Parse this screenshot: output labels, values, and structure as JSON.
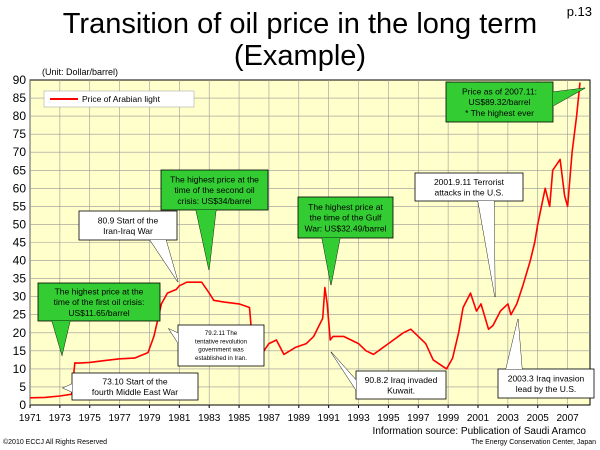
{
  "page_number": "p.13",
  "title_line1": "Transition of oil price in the long term",
  "title_line2": "(Example)",
  "unit_label": "(Unit: Dollar/barrel)",
  "source": "Information source: Publication of Saudi Aramco",
  "copyright": "©2010 ECCJ All Rights Reserved",
  "organization": "The Energy Conservation Center, Japan",
  "colors": {
    "plot_bg": "#ffffcc",
    "line": "#ff0000",
    "callout_green": "#33cc33",
    "callout_white": "#ffffff",
    "grid": "#999999"
  },
  "chart_data": {
    "type": "line",
    "title": "Transition of oil price in the long term",
    "ylabel": "(Unit: Dollar/barrel)",
    "xlabel": "",
    "ylim": [
      0,
      90
    ],
    "xlim": [
      1971,
      2008.5
    ],
    "grid": true,
    "legend_position": "top-left",
    "y_ticks": [
      "0",
      "5",
      "10",
      "15",
      "20",
      "25",
      "30",
      "35",
      "40",
      "45",
      "50",
      "55",
      "60",
      "65",
      "70",
      "75",
      "80",
      "85",
      "90"
    ],
    "x_ticks": [
      "1971",
      "1973",
      "1975",
      "1977",
      "1979",
      "1981",
      "1983",
      "1985",
      "1987",
      "1989",
      "1991",
      "1993",
      "1995",
      "1997",
      "1999",
      "2001",
      "2003",
      "2005",
      "2007"
    ],
    "series": [
      {
        "name": "Price of Arabian light",
        "x": [
          1971.0,
          1972.0,
          1973.0,
          1973.8,
          1974.0,
          1974.3,
          1975.0,
          1976.0,
          1977.0,
          1978.0,
          1978.9,
          1979.3,
          1979.8,
          1980.2,
          1980.8,
          1981.0,
          1981.5,
          1982.0,
          1982.5,
          1983.0,
          1983.3,
          1984.0,
          1985.0,
          1985.7,
          1986.0,
          1986.5,
          1987.0,
          1987.5,
          1988.0,
          1988.8,
          1989.5,
          1990.0,
          1990.6,
          1990.75,
          1990.9,
          1991.1,
          1991.3,
          1992.0,
          1993.0,
          1993.5,
          1994.0,
          1995.0,
          1996.0,
          1996.5,
          1997.0,
          1997.5,
          1998.0,
          1998.9,
          1999.3,
          1999.7,
          2000.0,
          2000.5,
          2000.9,
          2001.2,
          2001.7,
          2002.0,
          2002.5,
          2003.0,
          2003.2,
          2003.6,
          2004.0,
          2004.5,
          2004.8,
          2005.0,
          2005.5,
          2005.8,
          2006.0,
          2006.5,
          2006.8,
          2007.0,
          2007.3,
          2007.6,
          2007.83
        ],
        "y": [
          2,
          2.1,
          2.5,
          3,
          11.65,
          11.6,
          11.8,
          12.3,
          12.8,
          13,
          14.5,
          19,
          28,
          31,
          32,
          33,
          34,
          34,
          34,
          31,
          29,
          28.5,
          28,
          27,
          12,
          14,
          17,
          18,
          14,
          16,
          17,
          19,
          24,
          32.5,
          28,
          18,
          19,
          19,
          17,
          15,
          14,
          17,
          20,
          21,
          19,
          17,
          12.5,
          10,
          13,
          20,
          27,
          31,
          26,
          28,
          21,
          22,
          26,
          28,
          25,
          28,
          33,
          40,
          45,
          50,
          60,
          55,
          65,
          68,
          58,
          55,
          70,
          80,
          89.32
        ]
      }
    ],
    "annotations": [
      {
        "id": "first_oil_crisis",
        "text": [
          "The highest price at the",
          "time of the first oil crisis:",
          "US$11.65/barrel"
        ]
      },
      {
        "id": "iran_iraq_war",
        "text": [
          "80.9 Start of the",
          "Iran-Iraq War"
        ]
      },
      {
        "id": "second_oil_crisis",
        "text": [
          "The highest price at the",
          "time of the second oil",
          "crisis: US$34/barrel"
        ]
      },
      {
        "id": "iran_revolution",
        "text": [
          "79.2.11 The",
          "tentative revolution",
          "government was",
          "established in Iran."
        ]
      },
      {
        "id": "middle_east_war",
        "text": [
          "73.10 Start of the",
          "fourth Middle East War"
        ]
      },
      {
        "id": "gulf_war",
        "text": [
          "The highest price at",
          "the time of the Gulf",
          "War: US$32.49/barrel"
        ]
      },
      {
        "id": "iraq_kuwait",
        "text": [
          "90.8.2 Iraq invaded",
          "Kuwait."
        ]
      },
      {
        "id": "terrorist_attacks",
        "text": [
          "2001.9.11 Terrorist",
          "attacks in the U.S."
        ]
      },
      {
        "id": "iraq_invasion",
        "text": [
          "2003.3 Iraq invasion",
          "lead by the U.S."
        ]
      },
      {
        "id": "price_2007",
        "text": [
          "Price as of 2007.11:",
          "US$89.32/barrel",
          "* The highest ever"
        ]
      }
    ]
  }
}
